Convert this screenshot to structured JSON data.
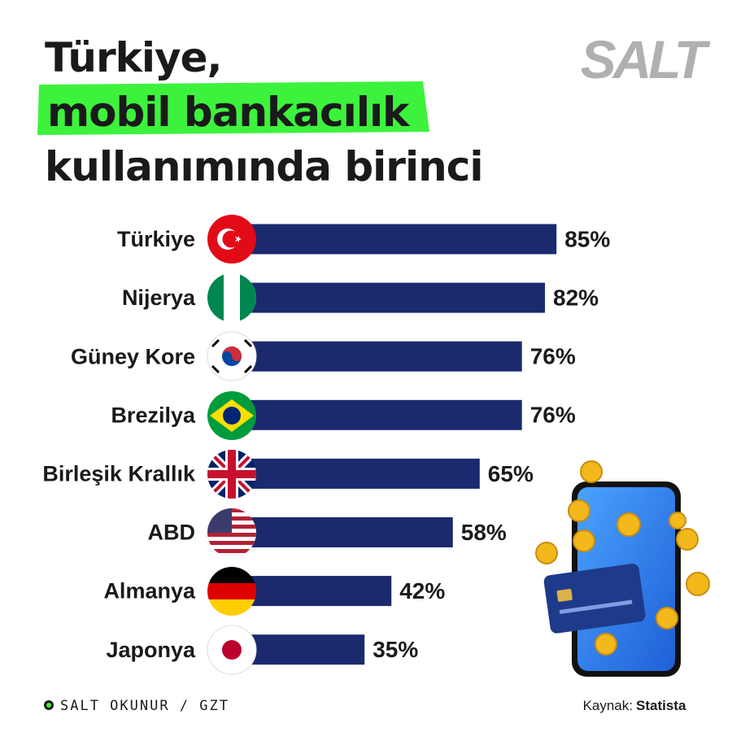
{
  "chart_data": {
    "type": "bar",
    "orientation": "horizontal",
    "title_lines": [
      "Türkiye,",
      "mobil bankacılık",
      "kullanımında birinci"
    ],
    "logo": "SALT",
    "categories": [
      "Türkiye",
      "Nijerya",
      "Güney Kore",
      "Brezilya",
      "Birleşik Krallık",
      "ABD",
      "Almanya",
      "Japonya"
    ],
    "values": [
      85,
      82,
      76,
      76,
      65,
      58,
      42,
      35
    ],
    "value_labels": [
      "85%",
      "82%",
      "76%",
      "76%",
      "65%",
      "58%",
      "42%",
      "35%"
    ],
    "color": "#1b2a6e",
    "footer_left": "SALT OKUNUR / GZT",
    "source_label": "Kaynak:",
    "source": "Statista"
  }
}
